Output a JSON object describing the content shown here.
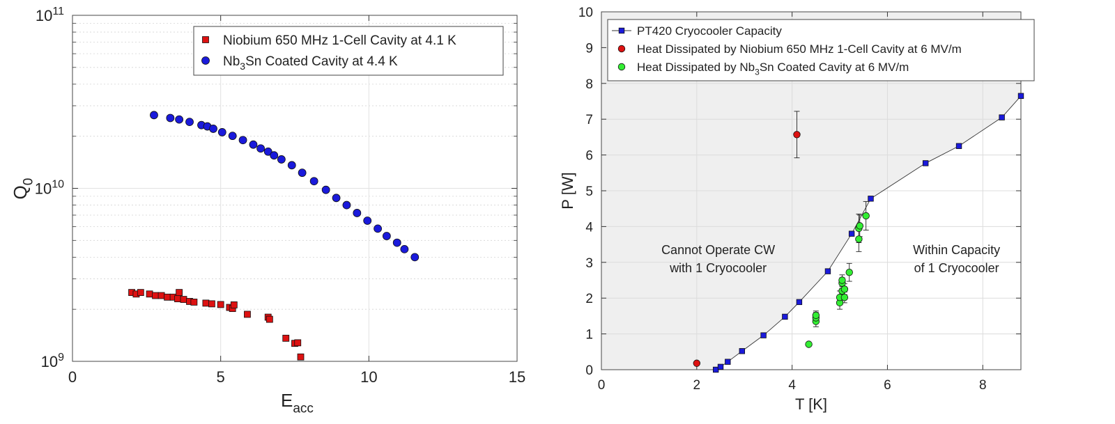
{
  "chart_data": [
    {
      "type": "scatter",
      "yscale": "log",
      "xlabel": "E",
      "xlabel_sub": "acc",
      "ylabel": "Q",
      "ylabel_sub": "0",
      "xlim": [
        0,
        15
      ],
      "ylim": [
        1000000000.0,
        100000000000.0
      ],
      "xticks": [
        0,
        5,
        10,
        15
      ],
      "xtick_labels": [
        "0",
        "5",
        "10",
        "15"
      ],
      "yticks": [
        1000000000.0,
        10000000000.0,
        100000000000.0
      ],
      "ytick_labels": [
        {
          "base": "10",
          "exp": "9"
        },
        {
          "base": "10",
          "exp": "10"
        },
        {
          "base": "10",
          "exp": "11"
        }
      ],
      "grid": true,
      "legend_position": "top-right",
      "series": [
        {
          "name": "Niobium 650 MHz 1-Cell Cavity at 4.1 K",
          "legend_parts": [
            {
              "t": "Niobium 650 MHz 1-Cell Cavity at 4.1 K"
            }
          ],
          "marker": "square",
          "color": "#dd1111",
          "points": [
            [
              2.0,
              2500000000.0
            ],
            [
              2.15,
              2450000000.0
            ],
            [
              2.3,
              2500000000.0
            ],
            [
              2.6,
              2450000000.0
            ],
            [
              2.8,
              2400000000.0
            ],
            [
              3.0,
              2400000000.0
            ],
            [
              3.2,
              2350000000.0
            ],
            [
              3.4,
              2350000000.0
            ],
            [
              3.55,
              2300000000.0
            ],
            [
              3.6,
              2500000000.0
            ],
            [
              3.75,
              2280000000.0
            ],
            [
              3.95,
              2220000000.0
            ],
            [
              4.1,
              2200000000.0
            ],
            [
              4.5,
              2170000000.0
            ],
            [
              4.7,
              2150000000.0
            ],
            [
              5.0,
              2130000000.0
            ],
            [
              5.3,
              2050000000.0
            ],
            [
              5.4,
              2020000000.0
            ],
            [
              5.45,
              2120000000.0
            ],
            [
              5.9,
              1870000000.0
            ],
            [
              6.6,
              1800000000.0
            ],
            [
              6.65,
              1750000000.0
            ],
            [
              7.2,
              1360000000.0
            ],
            [
              7.5,
              1270000000.0
            ],
            [
              7.6,
              1280000000.0
            ],
            [
              7.7,
              1060000000.0
            ]
          ]
        },
        {
          "name": "Nb3Sn Coated Cavity at 4.4 K",
          "legend_parts": [
            {
              "t": "Nb"
            },
            {
              "t": "3",
              "sub": true
            },
            {
              "t": "Sn Coated Cavity at 4.4 K"
            }
          ],
          "marker": "circle",
          "color": "#1a1adb",
          "points": [
            [
              2.75,
              26500000000.0
            ],
            [
              3.3,
              25500000000.0
            ],
            [
              3.6,
              25000000000.0
            ],
            [
              3.95,
              24200000000.0
            ],
            [
              4.35,
              23200000000.0
            ],
            [
              4.55,
              22800000000.0
            ],
            [
              4.75,
              22100000000.0
            ],
            [
              5.05,
              21100000000.0
            ],
            [
              5.4,
              20100000000.0
            ],
            [
              5.75,
              19000000000.0
            ],
            [
              6.1,
              17900000000.0
            ],
            [
              6.35,
              17000000000.0
            ],
            [
              6.6,
              16300000000.0
            ],
            [
              6.8,
              15500000000.0
            ],
            [
              7.05,
              14700000000.0
            ],
            [
              7.4,
              13600000000.0
            ],
            [
              7.75,
              12300000000.0
            ],
            [
              8.15,
              11000000000.0
            ],
            [
              8.55,
              9800000000.0
            ],
            [
              8.9,
              8800000000.0
            ],
            [
              9.25,
              8000000000.0
            ],
            [
              9.6,
              7200000000.0
            ],
            [
              9.95,
              6500000000.0
            ],
            [
              10.3,
              5850000000.0
            ],
            [
              10.6,
              5300000000.0
            ],
            [
              10.95,
              4850000000.0
            ],
            [
              11.2,
              4450000000.0
            ],
            [
              11.55,
              4000000000.0
            ]
          ]
        }
      ]
    },
    {
      "type": "line+scatter",
      "xlabel": "T [K]",
      "ylabel": "P [W]",
      "xlim": [
        0,
        8.8
      ],
      "ylim": [
        0,
        10
      ],
      "xticks": [
        0,
        2,
        4,
        6,
        8
      ],
      "xtick_labels": [
        "0",
        "2",
        "4",
        "6",
        "8"
      ],
      "yticks": [
        0,
        1,
        2,
        3,
        4,
        5,
        6,
        7,
        8,
        9,
        10
      ],
      "ytick_labels": [
        "0",
        "1",
        "2",
        "3",
        "4",
        "5",
        "6",
        "7",
        "8",
        "9",
        "10"
      ],
      "grid": true,
      "legend_position": "top-left",
      "shaded_region": "above PT420 capacity curve",
      "annotations": [
        {
          "lines": [
            "Cannot Operate CW",
            "with 1 Cryocooler"
          ],
          "x": 2.45,
          "y": 3.0
        },
        {
          "lines": [
            "Within Capacity",
            "of 1 Cryocooler"
          ],
          "x": 7.45,
          "y": 3.0
        }
      ],
      "series": [
        {
          "name": "PT420 Cryocooler Capacity",
          "legend_parts": [
            {
              "t": "PT420 Cryocooler Capacity"
            }
          ],
          "marker": "square",
          "line": true,
          "color": "#1a1adb",
          "points": [
            [
              2.4,
              0.0
            ],
            [
              2.5,
              0.08
            ],
            [
              2.65,
              0.22
            ],
            [
              2.95,
              0.52
            ],
            [
              3.4,
              0.96
            ],
            [
              3.85,
              1.48
            ],
            [
              4.15,
              1.89
            ],
            [
              4.75,
              2.75
            ],
            [
              5.25,
              3.8
            ],
            [
              5.65,
              4.78
            ],
            [
              6.8,
              5.77
            ],
            [
              7.5,
              6.25
            ],
            [
              8.4,
              7.05
            ],
            [
              8.8,
              7.65
            ]
          ]
        },
        {
          "name": "Heat Dissipated by Niobium 650 MHz 1-Cell Cavity at 6 MV/m",
          "legend_parts": [
            {
              "t": "Heat Dissipated by Niobium 650 MHz 1-Cell Cavity at 6 MV/m"
            }
          ],
          "marker": "circle",
          "color": "#dd1111",
          "points": [
            [
              2.0,
              0.18,
              0
            ],
            [
              4.1,
              6.57,
              0.65
            ]
          ]
        },
        {
          "name": "Heat Dissipated by Nb3Sn Coated Cavity at 6 MV/m",
          "legend_parts": [
            {
              "t": "Heat Dissipated by Nb"
            },
            {
              "t": "3",
              "sub": true
            },
            {
              "t": "Sn Coated Cavity at 6 MV/m"
            }
          ],
          "marker": "circle",
          "color": "#33ee33",
          "points": [
            [
              4.35,
              0.71,
              0
            ],
            [
              4.5,
              1.35,
              0.15
            ],
            [
              4.5,
              1.45,
              0.15
            ],
            [
              4.5,
              1.52,
              0.12
            ],
            [
              5.0,
              1.87,
              0.18
            ],
            [
              5.0,
              2.02,
              0.18
            ],
            [
              5.1,
              2.02,
              0.15
            ],
            [
              5.05,
              2.2,
              0.12
            ],
            [
              5.05,
              2.42,
              0.15
            ],
            [
              5.05,
              2.5,
              0.15
            ],
            [
              5.1,
              2.25,
              0.15
            ],
            [
              5.2,
              2.72,
              0.25
            ],
            [
              5.4,
              3.65,
              0.35
            ],
            [
              5.4,
              3.95,
              0.4
            ],
            [
              5.42,
              4.02,
              0.3
            ],
            [
              5.55,
              4.3,
              0.4
            ]
          ]
        }
      ]
    }
  ]
}
